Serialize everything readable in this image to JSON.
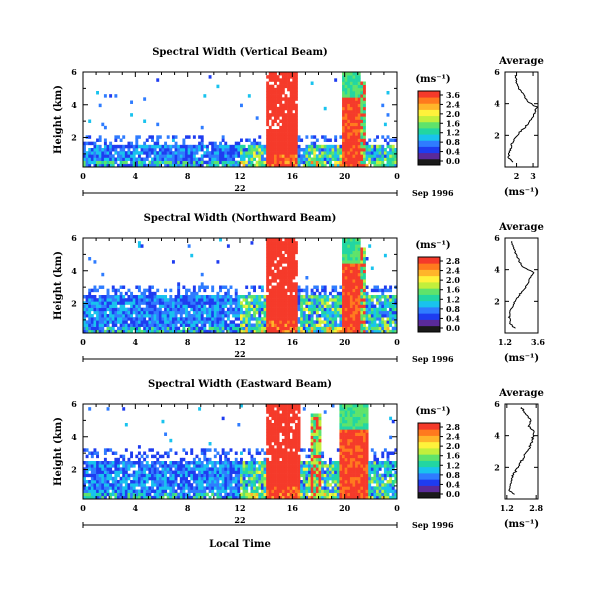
{
  "chart_data": [
    {
      "type": "heatmap",
      "title": "Spectral Width (Vertical Beam)",
      "ylabel": "Height (km)",
      "ylim": [
        0.2,
        6
      ],
      "yticks": [
        "2",
        "4",
        "6"
      ],
      "xlim": [
        0,
        24
      ],
      "xticks": [
        "0",
        "4",
        "8",
        "12",
        "16",
        "20",
        "0"
      ],
      "date_label": "22",
      "month_label": "Sep 1996",
      "colorbar": {
        "unit": "(ms⁻¹)",
        "ticks": [
          "3.6",
          "2.4",
          "2.0",
          "1.6",
          "1.2",
          "0.8",
          "0.4",
          "0.0"
        ]
      },
      "structure": {
        "low_layer_top_km": 1.6,
        "band1_hours": [
          14.1,
          16.4
        ],
        "band2_hours": [
          19.8,
          21.2
        ],
        "band3_hours": [
          20.9,
          21.6
        ]
      },
      "profile": {
        "title": "Average",
        "xlabel": "(ms⁻¹)",
        "xticks": [
          "2",
          "3"
        ],
        "xlim": [
          1.3,
          3.3
        ],
        "yticks": [
          "2",
          "4",
          "6"
        ],
        "height_km": [
          0.3,
          0.6,
          1.0,
          1.4,
          1.8,
          2.2,
          2.6,
          3.0,
          3.4,
          3.8,
          4.2,
          4.6,
          5.0,
          5.4,
          5.8
        ],
        "values": [
          1.8,
          1.5,
          1.6,
          1.7,
          1.9,
          2.2,
          2.6,
          2.9,
          3.1,
          3.2,
          2.6,
          2.4,
          2.1,
          2.0,
          1.9
        ]
      }
    },
    {
      "type": "heatmap",
      "title": "Spectral Width (Northward Beam)",
      "ylabel": "Height (km)",
      "ylim": [
        0.2,
        6
      ],
      "yticks": [
        "2",
        "4",
        "6"
      ],
      "xlim": [
        0,
        24
      ],
      "xticks": [
        "0",
        "4",
        "8",
        "12",
        "16",
        "20",
        "0"
      ],
      "date_label": "22",
      "month_label": "Sep 1996",
      "colorbar": {
        "unit": "(ms⁻¹)",
        "ticks": [
          "2.8",
          "2.4",
          "2.0",
          "1.6",
          "1.2",
          "0.8",
          "0.4",
          "0.0"
        ]
      },
      "structure": {
        "low_layer_top_km": 2.5,
        "band1_hours": [
          14.1,
          16.4
        ],
        "band2_hours": [
          19.8,
          21.2
        ],
        "band3_hours": [
          20.9,
          21.6
        ]
      },
      "profile": {
        "title": "Average",
        "xlabel": "(ms⁻¹)",
        "xticks": [
          "1.2",
          "3.6"
        ],
        "xlim": [
          1.2,
          3.6
        ],
        "yticks": [
          "2",
          "4",
          "6"
        ],
        "height_km": [
          0.3,
          0.6,
          1.0,
          1.4,
          1.8,
          2.2,
          2.6,
          3.0,
          3.4,
          3.8,
          4.2,
          4.6,
          5.0,
          5.4,
          5.8
        ],
        "values": [
          1.9,
          1.6,
          1.5,
          1.6,
          1.8,
          2.1,
          2.4,
          2.8,
          3.0,
          3.3,
          2.5,
          2.2,
          2.0,
          1.8,
          1.7
        ]
      }
    },
    {
      "type": "heatmap",
      "title": "Spectral Width (Eastward Beam)",
      "ylabel": "Height (km)",
      "ylim": [
        0.2,
        6
      ],
      "yticks": [
        "2",
        "4",
        "6"
      ],
      "xlim": [
        0,
        24
      ],
      "xticks": [
        "0",
        "4",
        "8",
        "12",
        "16",
        "20",
        "0"
      ],
      "date_label": "22",
      "month_label": "Sep 1996",
      "xlabel": "Local Time",
      "colorbar": {
        "unit": "(ms⁻¹)",
        "ticks": [
          "2.8",
          "2.4",
          "2.0",
          "1.6",
          "1.2",
          "0.8",
          "0.4",
          "0.0"
        ]
      },
      "structure": {
        "low_layer_top_km": 2.6,
        "band1_hours": [
          14.0,
          16.6
        ],
        "band2_hours": [
          19.6,
          21.8
        ],
        "band3_hours": [
          17.5,
          18.2
        ]
      },
      "profile": {
        "title": "Average",
        "xlabel": "(ms⁻¹)",
        "xticks": [
          "1.2",
          "2.8"
        ],
        "xlim": [
          1.1,
          2.9
        ],
        "yticks": [
          "2",
          "4",
          "6"
        ],
        "height_km": [
          0.3,
          0.6,
          1.0,
          1.4,
          1.8,
          2.2,
          2.6,
          3.0,
          3.4,
          3.8,
          4.2,
          4.6,
          5.0,
          5.4,
          5.8
        ],
        "values": [
          1.6,
          1.3,
          1.4,
          1.5,
          1.7,
          1.9,
          2.1,
          2.3,
          2.5,
          2.6,
          2.7,
          2.4,
          2.5,
          2.2,
          2.0
        ]
      }
    }
  ]
}
